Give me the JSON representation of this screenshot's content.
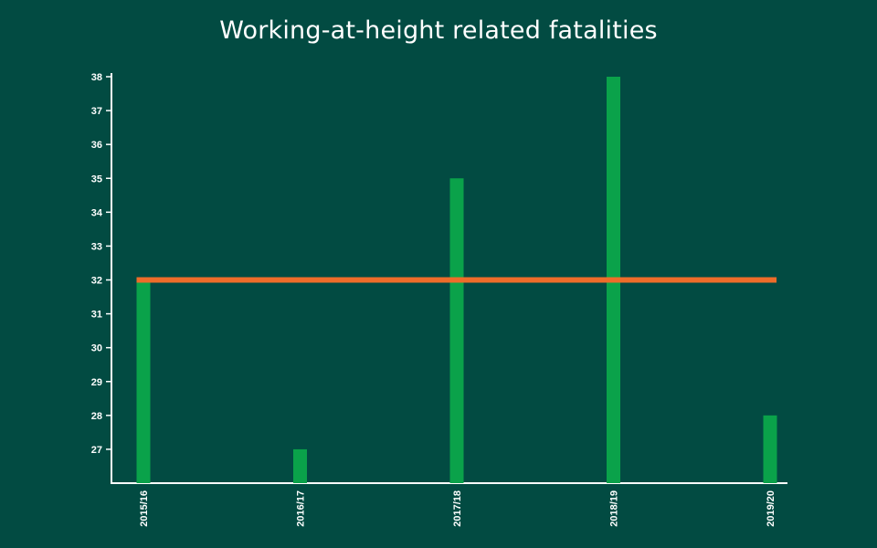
{
  "chart_data": {
    "type": "bar",
    "title": "Working-at-height related fatalities",
    "xlabel": "",
    "ylabel": "",
    "categories": [
      "2015/16",
      "2016/17",
      "2017/18",
      "2018/19",
      "2019/20"
    ],
    "series": [
      {
        "values": [
          32,
          27,
          35,
          38,
          28
        ],
        "color": "#0aa24a"
      }
    ],
    "reference_line": {
      "value": 32,
      "color": "#ee6c2a"
    },
    "ylim": [
      26,
      38
    ],
    "yticks": [
      27,
      28,
      29,
      30,
      31,
      32,
      33,
      34,
      35,
      36,
      37,
      38
    ],
    "grid": false,
    "legend": "none"
  },
  "colors": {
    "background": "#024b42",
    "axis": "#ffffff",
    "text": "#ffffff"
  }
}
